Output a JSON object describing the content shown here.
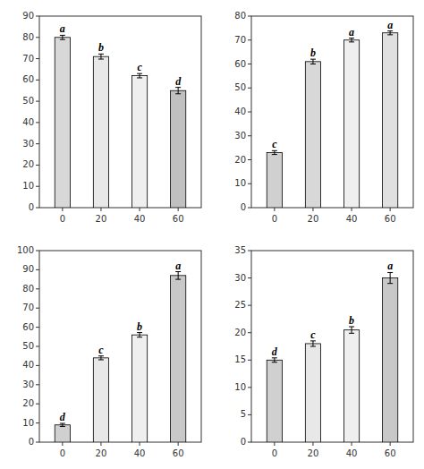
{
  "chart_data": [
    {
      "type": "bar",
      "x": [
        0,
        20,
        40,
        60
      ],
      "values": [
        80,
        71,
        62,
        55
      ],
      "errors": [
        1.0,
        1.2,
        1.0,
        1.5
      ],
      "annotations": [
        "a",
        "b",
        "c",
        "d"
      ],
      "colors": [
        "#d8d8d8",
        "#e8e8e8",
        "#efefef",
        "#c0c0c0"
      ],
      "xlim": [
        -12,
        72
      ],
      "xticks": [
        0,
        20,
        40,
        60
      ],
      "ylim": [
        0,
        90
      ],
      "yticks": [
        0,
        10,
        20,
        30,
        40,
        50,
        60,
        70,
        80,
        90
      ],
      "grid": false
    },
    {
      "type": "bar",
      "x": [
        0,
        20,
        40,
        60
      ],
      "values": [
        23,
        61,
        70,
        73
      ],
      "errors": [
        0.8,
        1.0,
        0.8,
        0.8
      ],
      "annotations": [
        "c",
        "b",
        "a",
        "a"
      ],
      "colors": [
        "#d0d0d0",
        "#d8d8d8",
        "#efefef",
        "#e0e0e0"
      ],
      "xlim": [
        -12,
        72
      ],
      "xticks": [
        0,
        20,
        40,
        60
      ],
      "ylim": [
        0,
        80
      ],
      "yticks": [
        0,
        10,
        20,
        30,
        40,
        50,
        60,
        70,
        80
      ],
      "grid": false
    },
    {
      "type": "bar",
      "x": [
        0,
        20,
        40,
        60
      ],
      "values": [
        9,
        44,
        56,
        87
      ],
      "errors": [
        0.8,
        1.0,
        1.2,
        2.0
      ],
      "annotations": [
        "d",
        "c",
        "b",
        "a"
      ],
      "colors": [
        "#d0d0d0",
        "#e8e8e8",
        "#efefef",
        "#c8c8c8"
      ],
      "xlim": [
        -12,
        72
      ],
      "xticks": [
        0,
        20,
        40,
        60
      ],
      "ylim": [
        0,
        100
      ],
      "yticks": [
        0,
        10,
        20,
        30,
        40,
        50,
        60,
        70,
        80,
        90,
        100
      ],
      "grid": false
    },
    {
      "type": "bar",
      "x": [
        0,
        20,
        40,
        60
      ],
      "values": [
        15,
        18,
        20.5,
        30
      ],
      "errors": [
        0.4,
        0.5,
        0.6,
        1.0
      ],
      "annotations": [
        "d",
        "c",
        "b",
        "a"
      ],
      "colors": [
        "#d0d0d0",
        "#e8e8e8",
        "#efefef",
        "#c8c8c8"
      ],
      "xlim": [
        -12,
        72
      ],
      "xticks": [
        0,
        20,
        40,
        60
      ],
      "ylim": [
        0,
        35
      ],
      "yticks": [
        0,
        5,
        10,
        15,
        20,
        25,
        30,
        35
      ],
      "grid": false
    }
  ]
}
